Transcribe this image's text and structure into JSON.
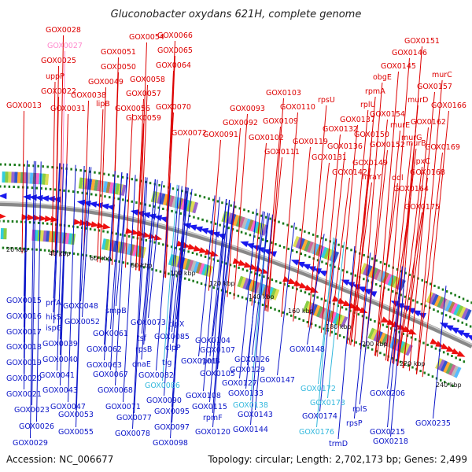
{
  "title": "Gluconobacter oxydans 621H, complete genome",
  "accession": "Accession: NC_006677",
  "topology": "Topology: circular; Length: 2,702,173 bp; Genes: 2,499",
  "colors": {
    "plus_label": "#dd0000",
    "minus_label": "#0a14c8",
    "rna_label": "#33b8dd",
    "pseudo_label": "#ff88cc",
    "backbone": "#777777",
    "tick": "#1a7a1a"
  },
  "kbp_ticks": [
    "20 kbp",
    "40 kbp",
    "60 kbp",
    "80 kbp",
    "100 kbp",
    "120 kbp",
    "140 kbp",
    "160 kbp",
    "180 kbp",
    "200 kbp",
    "220 kbp",
    "240 kbp"
  ],
  "top_labels": [
    "GOX0028",
    "GOX0027",
    "GOX0025",
    "uppP",
    "GOX0022",
    "GOX0013",
    "GOX0031",
    "GOX0038",
    "lipB",
    "GOX0049",
    "GOX0050",
    "GOX0051",
    "GOX0054",
    "GOX0056",
    "GOX0057",
    "GOX0058",
    "GOX0059",
    "GOX0064",
    "GOX0065",
    "GOX0066",
    "GOX0070",
    "GOX0072",
    "GOX0091",
    "GOX0092",
    "GOX0093",
    "GOX0102",
    "GOX0103",
    "GOX0109",
    "GOX0110",
    "GOX0111",
    "GOX0119",
    "rpsU",
    "GOX0131",
    "GOX0132",
    "GOX0136",
    "GOX0137",
    "GOX0142",
    "rplU",
    "rpmA",
    "obgE",
    "GOX0145",
    "GOX0146",
    "GOX0151",
    "murC",
    "GOX0157",
    "murD",
    "GOX0166",
    "murE",
    "GOX0154",
    "GOX0150",
    "GOX0152",
    "GOX0149",
    "mraY",
    "ddl",
    "murG",
    "murB",
    "GOX0162",
    "lpxC",
    "GOX0169",
    "GOX0168",
    "GOX0164",
    "GOX0175"
  ],
  "bottom_labels": [
    "GOX0015",
    "GOX0016",
    "GOX0017",
    "GOX0018",
    "GOX0019",
    "GOX0020",
    "GOX0021",
    "GOX0023",
    "GOX0026",
    "GOX0029",
    "prfA",
    "hisS",
    "ispG",
    "GOX0048",
    "GOX0052",
    "GOX0039",
    "GOX0040",
    "GOX0041",
    "GOX0043",
    "GOX0047",
    "GOX0053",
    "GOX0055",
    "smpB",
    "GOX0061",
    "GOX0062",
    "GOX0063",
    "GOX0067",
    "GOX0068",
    "GOX0071",
    "GOX0077",
    "GOX0078",
    "GOX0073",
    "tsf",
    "rpsB",
    "dnaE",
    "GOX0082",
    "GOX0085",
    "clpX",
    "clpP",
    "tig",
    "GOX0086",
    "GOX0090",
    "GOX0095",
    "GOX0097",
    "GOX0098",
    "GOX0104",
    "GOX0107",
    "GOX0101",
    "rpmB",
    "GOX0105",
    "GOX0108",
    "GOX0115",
    "rpmF",
    "GOX0120",
    "GOX0126",
    "GOX0129",
    "GOX0127",
    "GOX0133",
    "GOX0138",
    "GOX0143",
    "GOX0144",
    "GOX0147",
    "GOX0148",
    "GOX0172",
    "GOX0173",
    "GOX0174",
    "GOX0176",
    "trmD",
    "rpsP",
    "rplS",
    "GOX0206",
    "GOX0215",
    "GOX0218",
    "GOX0235"
  ]
}
